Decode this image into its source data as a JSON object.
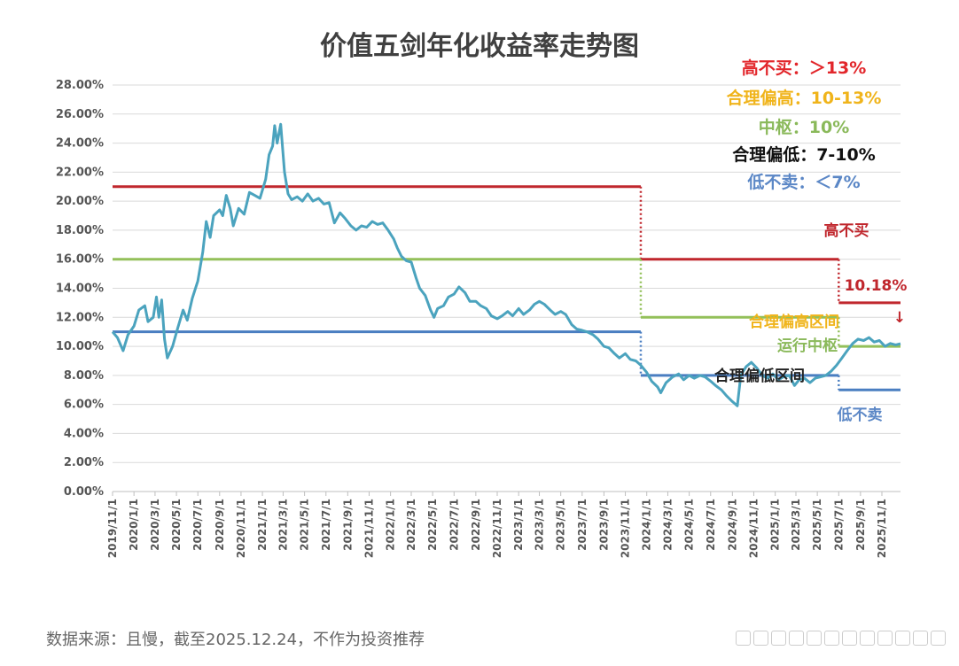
{
  "chart_data": {
    "type": "line",
    "title": "价值五剑年化收益率走势图",
    "yticks": [
      "0.00%",
      "2.00%",
      "4.00%",
      "6.00%",
      "8.00%",
      "10.00%",
      "12.00%",
      "14.00%",
      "16.00%",
      "18.00%",
      "20.00%",
      "22.00%",
      "24.00%",
      "26.00%",
      "28.00%"
    ],
    "ylim": [
      0,
      28
    ],
    "xlim": [
      "2019-11-01",
      "2025-12-24"
    ],
    "xticks": [
      "2019/11/1",
      "2020/1/1",
      "2020/3/1",
      "2020/5/1",
      "2020/7/1",
      "2020/9/1",
      "2020/11/1",
      "2021/1/1",
      "2021/3/1",
      "2021/5/1",
      "2021/7/1",
      "2021/9/1",
      "2021/11/1",
      "2022/1/1",
      "2022/3/1",
      "2022/5/1",
      "2022/7/1",
      "2022/9/1",
      "2022/11/1",
      "2023/1/1",
      "2023/3/1",
      "2023/5/1",
      "2023/7/1",
      "2023/9/1",
      "2023/11/1",
      "2024/1/1",
      "2024/3/1",
      "2024/5/1",
      "2024/7/1",
      "2024/9/1",
      "2024/11/1",
      "2025/1/1",
      "2025/3/1",
      "2025/5/1",
      "2025/7/1",
      "2025/9/1",
      "2025/11/1"
    ],
    "series": [
      {
        "name": "",
        "color": "#4ba3be",
        "points": [
          [
            "2019-11-01",
            11.0
          ],
          [
            "2019-11-15",
            10.6
          ],
          [
            "2019-12-01",
            9.7
          ],
          [
            "2019-12-15",
            10.8
          ],
          [
            "2020-01-01",
            11.4
          ],
          [
            "2020-01-15",
            12.5
          ],
          [
            "2020-02-01",
            12.8
          ],
          [
            "2020-02-10",
            11.7
          ],
          [
            "2020-02-25",
            12.0
          ],
          [
            "2020-03-05",
            13.4
          ],
          [
            "2020-03-12",
            12.0
          ],
          [
            "2020-03-20",
            13.2
          ],
          [
            "2020-03-28",
            10.5
          ],
          [
            "2020-04-05",
            9.2
          ],
          [
            "2020-04-20",
            10.0
          ],
          [
            "2020-05-05",
            11.3
          ],
          [
            "2020-05-20",
            12.5
          ],
          [
            "2020-06-01",
            11.8
          ],
          [
            "2020-06-15",
            13.3
          ],
          [
            "2020-07-01",
            14.5
          ],
          [
            "2020-07-15",
            16.5
          ],
          [
            "2020-07-25",
            18.6
          ],
          [
            "2020-08-05",
            17.5
          ],
          [
            "2020-08-15",
            19.0
          ],
          [
            "2020-09-01",
            19.4
          ],
          [
            "2020-09-10",
            19.0
          ],
          [
            "2020-09-20",
            20.4
          ],
          [
            "2020-10-01",
            19.5
          ],
          [
            "2020-10-10",
            18.3
          ],
          [
            "2020-10-25",
            19.5
          ],
          [
            "2020-11-10",
            19.1
          ],
          [
            "2020-11-25",
            20.6
          ],
          [
            "2020-12-10",
            20.4
          ],
          [
            "2020-12-25",
            20.2
          ],
          [
            "2021-01-10",
            21.5
          ],
          [
            "2021-01-20",
            23.2
          ],
          [
            "2021-01-30",
            23.8
          ],
          [
            "2021-02-05",
            25.2
          ],
          [
            "2021-02-12",
            24.0
          ],
          [
            "2021-02-22",
            25.3
          ],
          [
            "2021-03-05",
            22.0
          ],
          [
            "2021-03-15",
            20.5
          ],
          [
            "2021-03-25",
            20.1
          ],
          [
            "2021-04-10",
            20.3
          ],
          [
            "2021-04-25",
            20.0
          ],
          [
            "2021-05-10",
            20.5
          ],
          [
            "2021-05-25",
            20.0
          ],
          [
            "2021-06-10",
            20.2
          ],
          [
            "2021-06-25",
            19.8
          ],
          [
            "2021-07-10",
            19.9
          ],
          [
            "2021-07-25",
            18.5
          ],
          [
            "2021-08-10",
            19.2
          ],
          [
            "2021-08-25",
            18.8
          ],
          [
            "2021-09-10",
            18.3
          ],
          [
            "2021-09-25",
            18.0
          ],
          [
            "2021-10-10",
            18.3
          ],
          [
            "2021-10-25",
            18.2
          ],
          [
            "2021-11-10",
            18.6
          ],
          [
            "2021-11-25",
            18.4
          ],
          [
            "2021-12-10",
            18.5
          ],
          [
            "2021-12-25",
            18.0
          ],
          [
            "2022-01-10",
            17.4
          ],
          [
            "2022-01-20",
            16.8
          ],
          [
            "2022-02-01",
            16.2
          ],
          [
            "2022-02-15",
            15.9
          ],
          [
            "2022-03-01",
            15.8
          ],
          [
            "2022-03-15",
            14.7
          ],
          [
            "2022-03-25",
            14.0
          ],
          [
            "2022-04-10",
            13.5
          ],
          [
            "2022-04-25",
            12.5
          ],
          [
            "2022-05-05",
            12.0
          ],
          [
            "2022-05-15",
            12.6
          ],
          [
            "2022-06-01",
            12.8
          ],
          [
            "2022-06-15",
            13.4
          ],
          [
            "2022-07-01",
            13.6
          ],
          [
            "2022-07-15",
            14.1
          ],
          [
            "2022-08-01",
            13.7
          ],
          [
            "2022-08-15",
            13.1
          ],
          [
            "2022-09-01",
            13.1
          ],
          [
            "2022-09-15",
            12.8
          ],
          [
            "2022-10-01",
            12.6
          ],
          [
            "2022-10-15",
            12.1
          ],
          [
            "2022-11-01",
            11.9
          ],
          [
            "2022-11-15",
            12.1
          ],
          [
            "2022-12-01",
            12.4
          ],
          [
            "2022-12-15",
            12.1
          ],
          [
            "2023-01-01",
            12.6
          ],
          [
            "2023-01-15",
            12.2
          ],
          [
            "2023-02-01",
            12.5
          ],
          [
            "2023-02-15",
            12.9
          ],
          [
            "2023-03-01",
            13.1
          ],
          [
            "2023-03-15",
            12.9
          ],
          [
            "2023-04-01",
            12.5
          ],
          [
            "2023-04-15",
            12.2
          ],
          [
            "2023-05-01",
            12.4
          ],
          [
            "2023-05-15",
            12.2
          ],
          [
            "2023-06-01",
            11.5
          ],
          [
            "2023-06-15",
            11.2
          ],
          [
            "2023-07-01",
            11.1
          ],
          [
            "2023-07-15",
            11.0
          ],
          [
            "2023-08-01",
            10.8
          ],
          [
            "2023-08-15",
            10.5
          ],
          [
            "2023-09-01",
            10.0
          ],
          [
            "2023-09-15",
            9.9
          ],
          [
            "2023-10-01",
            9.5
          ],
          [
            "2023-10-15",
            9.2
          ],
          [
            "2023-11-01",
            9.5
          ],
          [
            "2023-11-15",
            9.1
          ],
          [
            "2023-12-01",
            9.0
          ],
          [
            "2023-12-15",
            8.7
          ],
          [
            "2024-01-01",
            8.2
          ],
          [
            "2024-01-15",
            7.6
          ],
          [
            "2024-02-01",
            7.2
          ],
          [
            "2024-02-10",
            6.8
          ],
          [
            "2024-02-25",
            7.5
          ],
          [
            "2024-03-15",
            7.9
          ],
          [
            "2024-04-01",
            8.1
          ],
          [
            "2024-04-15",
            7.7
          ],
          [
            "2024-05-01",
            8.0
          ],
          [
            "2024-05-15",
            7.8
          ],
          [
            "2024-06-01",
            8.0
          ],
          [
            "2024-06-15",
            7.9
          ],
          [
            "2024-07-01",
            7.6
          ],
          [
            "2024-07-15",
            7.3
          ],
          [
            "2024-08-01",
            7.0
          ],
          [
            "2024-08-15",
            6.6
          ],
          [
            "2024-09-01",
            6.2
          ],
          [
            "2024-09-15",
            5.9
          ],
          [
            "2024-09-25",
            8.0
          ],
          [
            "2024-10-10",
            8.6
          ],
          [
            "2024-10-25",
            8.9
          ],
          [
            "2024-11-10",
            8.5
          ],
          [
            "2024-11-25",
            8.0
          ],
          [
            "2024-12-10",
            7.8
          ],
          [
            "2024-12-25",
            8.1
          ],
          [
            "2025-01-10",
            7.7
          ],
          [
            "2025-01-25",
            7.9
          ],
          [
            "2025-02-10",
            8.0
          ],
          [
            "2025-02-25",
            7.3
          ],
          [
            "2025-03-10",
            7.7
          ],
          [
            "2025-03-25",
            7.8
          ],
          [
            "2025-04-10",
            7.5
          ],
          [
            "2025-04-25",
            7.8
          ],
          [
            "2025-05-10",
            7.9
          ],
          [
            "2025-05-25",
            8.0
          ],
          [
            "2025-06-10",
            8.3
          ],
          [
            "2025-06-25",
            8.7
          ],
          [
            "2025-07-10",
            9.2
          ],
          [
            "2025-07-25",
            9.7
          ],
          [
            "2025-08-10",
            10.2
          ],
          [
            "2025-08-25",
            10.5
          ],
          [
            "2025-09-10",
            10.4
          ],
          [
            "2025-09-25",
            10.6
          ],
          [
            "2025-10-10",
            10.3
          ],
          [
            "2025-10-25",
            10.4
          ],
          [
            "2025-11-10",
            10.0
          ],
          [
            "2025-11-25",
            10.2
          ],
          [
            "2025-12-10",
            10.1
          ],
          [
            "2025-12-24",
            10.18
          ]
        ]
      }
    ],
    "reference_lines": [
      {
        "color": "#c0272d",
        "segments": [
          [
            "2019-11-01",
            "2023-12-15",
            21
          ],
          [
            "2023-12-15",
            "2025-07-01",
            16
          ],
          [
            "2025-07-01",
            "2025-12-24",
            13
          ]
        ]
      },
      {
        "color": "#93c05a",
        "segments": [
          [
            "2019-11-01",
            "2023-12-15",
            16
          ],
          [
            "2023-12-15",
            "2025-07-01",
            12
          ],
          [
            "2025-07-01",
            "2025-12-24",
            10
          ]
        ]
      },
      {
        "color": "#4a7ec1",
        "segments": [
          [
            "2019-11-01",
            "2023-12-15",
            11
          ],
          [
            "2023-12-15",
            "2025-07-01",
            8
          ],
          [
            "2025-07-01",
            "2025-12-24",
            7
          ]
        ]
      }
    ],
    "legend": [
      {
        "text": "高不买：＞13%",
        "color": "#e2262b"
      },
      {
        "text": "合理偏高：10-13%",
        "color": "#f0b41b"
      },
      {
        "text": "中枢：10%",
        "color": "#8ab95a"
      },
      {
        "text": "合理偏低：7-10%",
        "color": "#111111"
      },
      {
        "text": "低不卖：＜7%",
        "color": "#5b87c6"
      }
    ],
    "legend_position": "top-right",
    "annotations": {
      "high_no_buy": {
        "text": "高不买",
        "color": "#c0272d"
      },
      "last_value": {
        "text": "10.18%",
        "color": "#c0272d"
      },
      "arrow": {
        "text": "↓",
        "color": "#c0272d"
      },
      "reasonable_high": {
        "text": "合理偏高区间",
        "color": "#f0b41b"
      },
      "running_center": {
        "text": "运行中枢",
        "color": "#8ab95a"
      },
      "reasonable_low": {
        "text": "合理偏低区间",
        "color": "#222222"
      },
      "low_no_sell": {
        "text": "低不卖",
        "color": "#5b87c6"
      }
    },
    "grid": true
  },
  "source_text": "数据来源：且慢，截至2025.12.24，不作为投资推荐"
}
